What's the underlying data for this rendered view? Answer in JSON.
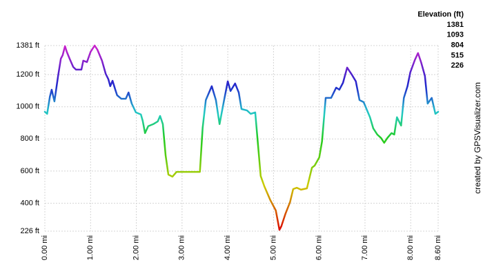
{
  "chart_data": {
    "type": "line",
    "legend_title": "Elevation (ft)",
    "credit": "created by GPSVisualizer.com",
    "color_scale": [
      {
        "value": 1381,
        "color": "#cc22cc"
      },
      {
        "value": 1093,
        "color": "#2244cc"
      },
      {
        "value": 804,
        "color": "#22cc22"
      },
      {
        "value": 515,
        "color": "#cccc00"
      },
      {
        "value": 226,
        "color": "#dd0000"
      }
    ],
    "x": [
      0,
      0.05,
      0.11,
      0.15,
      0.21,
      0.29,
      0.35,
      0.39,
      0.44,
      0.48,
      0.54,
      0.62,
      0.68,
      0.8,
      0.84,
      0.92,
      1.0,
      1.09,
      1.15,
      1.25,
      1.33,
      1.39,
      1.43,
      1.48,
      1.54,
      1.58,
      1.67,
      1.77,
      1.83,
      1.9,
      1.99,
      2.1,
      2.14,
      2.19,
      2.26,
      2.37,
      2.47,
      2.52,
      2.58,
      2.64,
      2.7,
      2.79,
      2.88,
      3.39,
      3.45,
      3.52,
      3.65,
      3.74,
      3.82,
      3.92,
      4.0,
      4.06,
      4.16,
      4.24,
      4.3,
      4.42,
      4.5,
      4.6,
      4.72,
      4.8,
      4.93,
      5.05,
      5.13,
      5.17,
      5.26,
      5.36,
      5.43,
      5.51,
      5.6,
      5.73,
      5.84,
      5.9,
      6.0,
      6.06,
      6.14,
      6.26,
      6.37,
      6.44,
      6.52,
      6.61,
      6.71,
      6.8,
      6.88,
      6.97,
      7.11,
      7.18,
      7.27,
      7.35,
      7.42,
      7.49,
      7.58,
      7.64,
      7.7,
      7.79,
      7.85,
      7.93,
      7.99,
      8.09,
      8.16,
      8.23,
      8.31,
      8.37,
      8.46,
      8.54,
      8.6
    ],
    "values": [
      969,
      956,
      1063,
      1106,
      1033,
      1192,
      1300,
      1321,
      1377,
      1342,
      1300,
      1248,
      1231,
      1231,
      1287,
      1278,
      1342,
      1381,
      1355,
      1287,
      1205,
      1171,
      1128,
      1162,
      1106,
      1072,
      1050,
      1050,
      1089,
      1020,
      965,
      952,
      913,
      836,
      879,
      892,
      909,
      943,
      892,
      698,
      578,
      565,
      595,
      595,
      870,
      1042,
      1128,
      1042,
      892,
      1042,
      1158,
      1098,
      1145,
      1089,
      986,
      977,
      956,
      965,
      569,
      505,
      419,
      355,
      234,
      256,
      333,
      406,
      488,
      496,
      484,
      492,
      621,
      634,
      685,
      784,
      1055,
      1055,
      1119,
      1106,
      1149,
      1244,
      1201,
      1158,
      1042,
      1029,
      935,
      866,
      827,
      806,
      776,
      806,
      836,
      827,
      935,
      883,
      1055,
      1128,
      1214,
      1291,
      1334,
      1274,
      1192,
      1020,
      1055,
      956,
      969
    ],
    "xlim": [
      0,
      8.6
    ],
    "ylim": [
      226,
      1381
    ],
    "xticks": [
      {
        "value": 0,
        "label": "0.00 mi"
      },
      {
        "value": 1,
        "label": "1.00 mi"
      },
      {
        "value": 2,
        "label": "2.00 mi"
      },
      {
        "value": 3,
        "label": "3.00 mi"
      },
      {
        "value": 4,
        "label": "4.00 mi"
      },
      {
        "value": 5,
        "label": "5.00 mi"
      },
      {
        "value": 6,
        "label": "6.00 mi"
      },
      {
        "value": 7,
        "label": "7.00 mi"
      },
      {
        "value": 8,
        "label": "8.00 mi"
      },
      {
        "value": 8.6,
        "label": "8.60 mi"
      }
    ],
    "yticks": [
      {
        "value": 226,
        "label": "226 ft"
      },
      {
        "value": 400,
        "label": "400 ft"
      },
      {
        "value": 600,
        "label": "600 ft"
      },
      {
        "value": 800,
        "label": "800 ft"
      },
      {
        "value": 1000,
        "label": "1000 ft"
      },
      {
        "value": 1200,
        "label": "1200 ft"
      },
      {
        "value": 1381,
        "label": "1381 ft"
      }
    ],
    "grid": true
  }
}
